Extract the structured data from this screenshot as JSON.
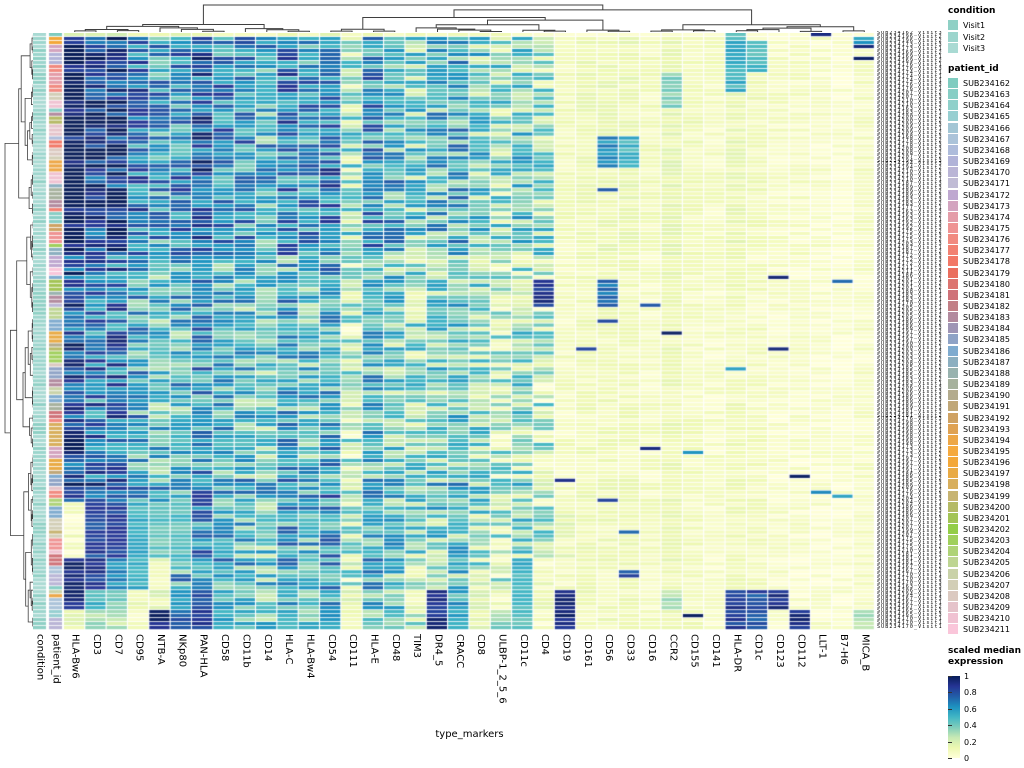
{
  "figure": {
    "xlabel": "type_markers"
  },
  "legend": {
    "condition": {
      "title": "condition",
      "items": [
        {
          "label": "Visit1",
          "color": "#8fd0c5"
        },
        {
          "label": "Visit2",
          "color": "#9cd5cd"
        },
        {
          "label": "Visit3",
          "color": "#a9dad3"
        }
      ]
    },
    "patient_id": {
      "title": "patient_id",
      "items": [
        {
          "label": "SUB234162",
          "color": "#7fccc0"
        },
        {
          "label": "SUB234163",
          "color": "#87cec5"
        },
        {
          "label": "SUB234164",
          "color": "#8fd0ca"
        },
        {
          "label": "SUB234165",
          "color": "#97cfd1"
        },
        {
          "label": "SUB234166",
          "color": "#a3c6d5"
        },
        {
          "label": "SUB234167",
          "color": "#abc3d9"
        },
        {
          "label": "SUB234168",
          "color": "#aebcdb"
        },
        {
          "label": "SUB234169",
          "color": "#b1b3d8"
        },
        {
          "label": "SUB234170",
          "color": "#bab5d6"
        },
        {
          "label": "SUB234171",
          "color": "#c0bbd5"
        },
        {
          "label": "SUB234172",
          "color": "#bfa8d0"
        },
        {
          "label": "SUB234173",
          "color": "#d3a4bf"
        },
        {
          "label": "SUB234174",
          "color": "#e49ca8"
        },
        {
          "label": "SUB234175",
          "color": "#ef9393"
        },
        {
          "label": "SUB234176",
          "color": "#f18a80"
        },
        {
          "label": "SUB234177",
          "color": "#f28172"
        },
        {
          "label": "SUB234178",
          "color": "#f27867"
        },
        {
          "label": "SUB234179",
          "color": "#ea6e5e"
        },
        {
          "label": "SUB234180",
          "color": "#dc7470"
        },
        {
          "label": "SUB234181",
          "color": "#cf7279"
        },
        {
          "label": "SUB234182",
          "color": "#c27f86"
        },
        {
          "label": "SUB234183",
          "color": "#b28a9e"
        },
        {
          "label": "SUB234184",
          "color": "#9f95b5"
        },
        {
          "label": "SUB234185",
          "color": "#8fa3c6"
        },
        {
          "label": "SUB234186",
          "color": "#7fabcf"
        },
        {
          "label": "SUB234187",
          "color": "#8cafc0"
        },
        {
          "label": "SUB234188",
          "color": "#98b2ae"
        },
        {
          "label": "SUB234189",
          "color": "#a6b19d"
        },
        {
          "label": "SUB234190",
          "color": "#b3ab8d"
        },
        {
          "label": "SUB234191",
          "color": "#c0a778"
        },
        {
          "label": "SUB234192",
          "color": "#cfa263"
        },
        {
          "label": "SUB234193",
          "color": "#dfa253"
        },
        {
          "label": "SUB234194",
          "color": "#eda747"
        },
        {
          "label": "SUB234195",
          "color": "#f5aa3f"
        },
        {
          "label": "SUB234196",
          "color": "#f3a839"
        },
        {
          "label": "SUB234197",
          "color": "#e9ab45"
        },
        {
          "label": "SUB234198",
          "color": "#d8af5d"
        },
        {
          "label": "SUB234199",
          "color": "#c7b472"
        },
        {
          "label": "SUB234200",
          "color": "#b5ba65"
        },
        {
          "label": "SUB234201",
          "color": "#a3c455"
        },
        {
          "label": "SUB234202",
          "color": "#93cd47"
        },
        {
          "label": "SUB234203",
          "color": "#a0d05c"
        },
        {
          "label": "SUB234204",
          "color": "#afd377"
        },
        {
          "label": "SUB234205",
          "color": "#bed592"
        },
        {
          "label": "SUB234206",
          "color": "#c9d2a8"
        },
        {
          "label": "SUB234207",
          "color": "#d2ceb6"
        },
        {
          "label": "SUB234208",
          "color": "#dbc9c0"
        },
        {
          "label": "SUB234209",
          "color": "#e5c3ca"
        },
        {
          "label": "SUB234210",
          "color": "#f0c2d2"
        },
        {
          "label": "SUB234211",
          "color": "#fac6da"
        }
      ]
    },
    "colorbar": {
      "title": "scaled median expression",
      "ticks": [
        "1",
        "0.8",
        "0.6",
        "0.4",
        "0.2",
        "0"
      ]
    }
  },
  "chart_data": {
    "type": "heatmap",
    "title": "",
    "xlabel": "type_markers",
    "x_annotation_columns": [
      "condition",
      "patient_id"
    ],
    "x_categories": [
      "HLA-Bw6",
      "CD3",
      "CD7",
      "CD95",
      "NTB-A",
      "NKp80",
      "PAN-HLA",
      "CD58",
      "CD11b",
      "CD14",
      "HLA-C",
      "HLA-Bw4",
      "CD54",
      "CD111",
      "HLA-E",
      "CD48",
      "TIM3",
      "DR4_5",
      "CRACC",
      "CD8",
      "ULBP-1_2_5_6",
      "CD11c",
      "CD4",
      "CD19",
      "CD161",
      "CD56",
      "CD33",
      "CD16",
      "CCR2",
      "CD155",
      "CD141",
      "HLA-DR",
      "CD1c",
      "CD123",
      "CD112",
      "LLT-1",
      "B7-H6",
      "MICA_B"
    ],
    "n_rows": 150,
    "row_clustering": true,
    "column_clustering": true,
    "value_domain": [
      0,
      1
    ],
    "colormap_stops": [
      "#ffffd9",
      "#edf8b1",
      "#c7e9b4",
      "#7fcdbb",
      "#41b6c4",
      "#1d91c0",
      "#225ea8",
      "#253494",
      "#081d58"
    ],
    "column_profile": [
      0.92,
      0.75,
      0.78,
      0.6,
      0.5,
      0.55,
      0.65,
      0.55,
      0.52,
      0.45,
      0.58,
      0.52,
      0.6,
      0.28,
      0.52,
      0.45,
      0.35,
      0.42,
      0.45,
      0.35,
      0.28,
      0.35,
      0.28,
      0.08,
      0.1,
      0.1,
      0.1,
      0.07,
      0.12,
      0.08,
      0.06,
      0.1,
      0.08,
      0.05,
      0.05,
      0.04,
      0.03,
      0.06
    ],
    "row_sections": [
      {
        "from": 0,
        "to": 55,
        "factor": 1.15
      },
      {
        "from": 56,
        "to": 111,
        "factor": 0.9
      },
      {
        "from": 112,
        "to": 117,
        "factor": 1.05
      },
      {
        "from": 118,
        "to": 149,
        "factor": 0.95
      }
    ],
    "block_overrides": [
      {
        "rows": [
          0,
          0
        ],
        "scale": 0.2,
        "cols": {
          "35": 0.9
        }
      },
      {
        "rows": [
          1,
          2
        ],
        "cols": {
          "37": 0.55
        }
      },
      {
        "rows": [
          3,
          3
        ],
        "cols": {
          "37": 0.95
        }
      },
      {
        "rows": [
          0,
          14
        ],
        "cols": {
          "31": 0.5
        }
      },
      {
        "rows": [
          2,
          9
        ],
        "cols": {
          "32": 0.45
        }
      },
      {
        "rows": [
          10,
          18
        ],
        "cols": {
          "28": 0.35
        }
      },
      {
        "rows": [
          26,
          33
        ],
        "cols": {
          "25": 0.62,
          "26": 0.5
        }
      },
      {
        "rows": [
          62,
          68
        ],
        "cols": {
          "22": 0.88,
          "25": 0.7
        }
      },
      {
        "rows": [
          118,
          131
        ],
        "cols": {
          "0": 0.06,
          "1": 0.82,
          "2": 0.85,
          "3": 0.5,
          "4": 0.42,
          "5": 0.45,
          "23": 0.12
        }
      },
      {
        "rows": [
          132,
          139
        ],
        "cols": {
          "0": 0.92,
          "1": 0.85,
          "2": 0.62,
          "3": 0.55,
          "4": 0.12,
          "21": 0.5,
          "22": 0.08
        }
      },
      {
        "rows": [
          140,
          144
        ],
        "cols": {
          "0": 0.9,
          "1": 0.5,
          "2": 0.4,
          "3": 0.15,
          "4": 0.15,
          "5": 0.6,
          "6": 0.8,
          "13": 0.15,
          "16": 0.1,
          "17": 0.85,
          "19": 0.15,
          "20": 0.08,
          "21": 0.5,
          "22": 0.08,
          "23": 0.9,
          "28": 0.3,
          "31": 0.85,
          "32": 0.8,
          "33": 0.9
        }
      },
      {
        "rows": [
          145,
          149
        ],
        "cols": {
          "0": 0.12,
          "1": 0.3,
          "2": 0.25,
          "3": 0.1,
          "4": 0.92,
          "5": 0.75,
          "6": 0.85,
          "7": 0.55,
          "10": 0.5,
          "12": 0.6,
          "13": 0.12,
          "17": 0.9,
          "18": 0.55,
          "19": 0.12,
          "21": 0.45,
          "22": 0.06,
          "23": 0.92,
          "31": 0.85,
          "32": 0.8,
          "34": 0.9,
          "37": 0.3
        }
      }
    ],
    "seed": 7
  }
}
